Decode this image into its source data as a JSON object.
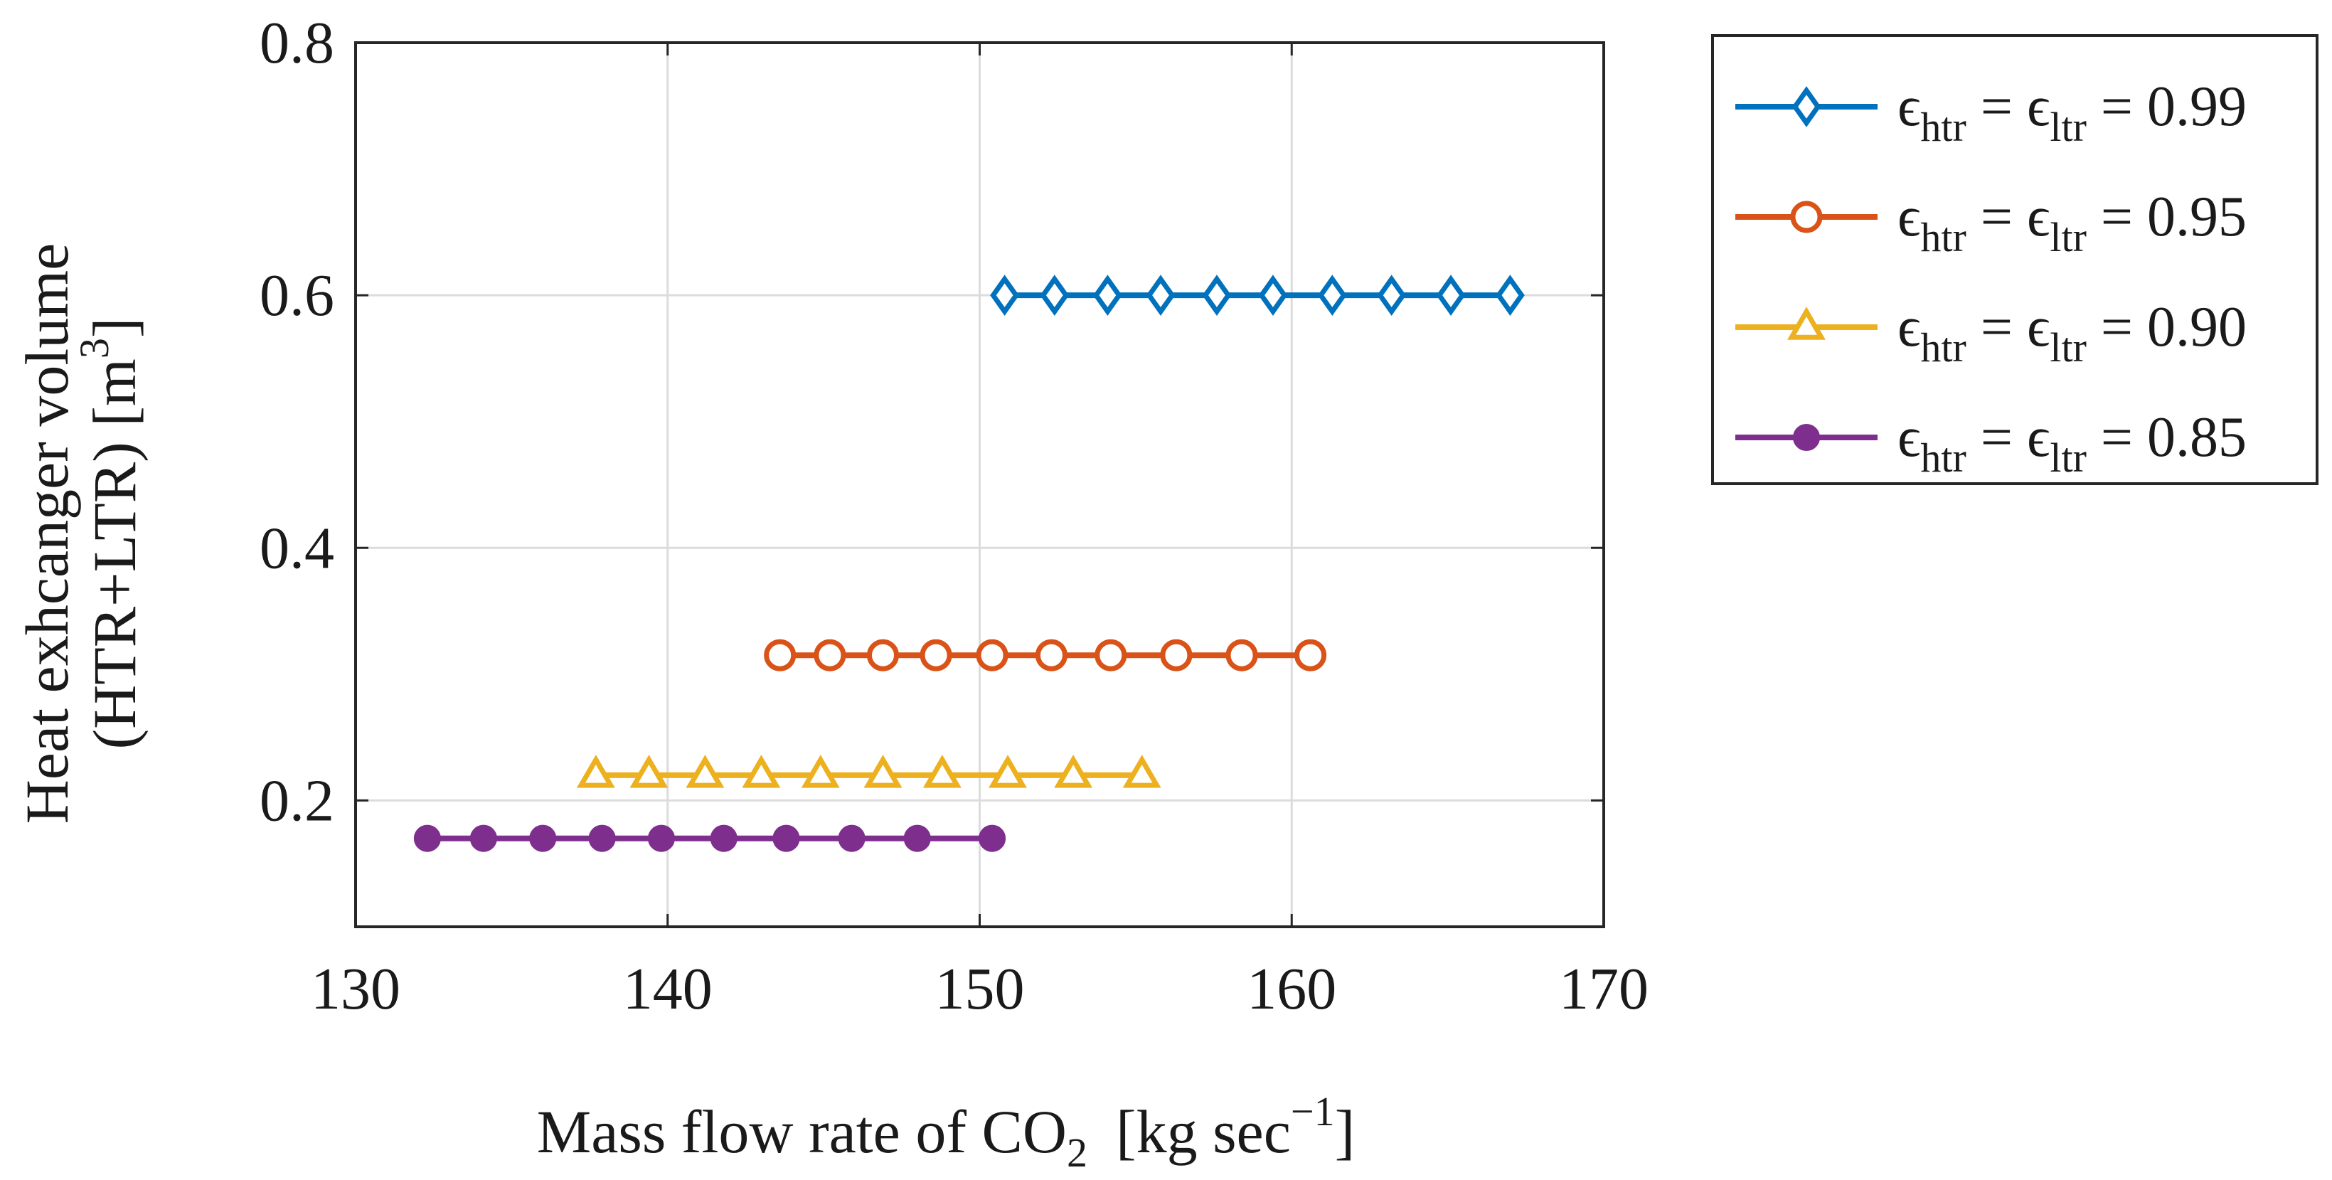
{
  "chart_data": {
    "type": "line",
    "title": "",
    "xlabel": {
      "main": "Mass flow rate of CO",
      "sub": "2",
      "units_prefix": "[kg sec",
      "units_sup": "−1",
      "units_suffix": "]"
    },
    "ylabel": {
      "line1": "Heat exhcanger volume",
      "line2_prefix": "(HTR+LTR) [m",
      "line2_sup": "3",
      "line2_suffix": "]"
    },
    "xlim": [
      130,
      170
    ],
    "ylim": [
      0.1,
      0.8
    ],
    "xticks": [
      130,
      140,
      150,
      160,
      170
    ],
    "yticks": [
      0.2,
      0.4,
      0.6,
      0.8
    ],
    "grid": true,
    "legend_position": "outside-top-right",
    "series": [
      {
        "name": "εhtr = εltr = 0.99",
        "legend": {
          "symbol": "ϵ",
          "sub1": "htr",
          "mid": " = ",
          "sub2": "ltr",
          "value": " = 0.99"
        },
        "color": "#0072BD",
        "marker": "diamond",
        "x": [
          150.8,
          152.4,
          154.1,
          155.8,
          157.6,
          159.4,
          161.3,
          163.2,
          165.1,
          167.0
        ],
        "y": [
          0.6,
          0.6,
          0.6,
          0.6,
          0.6,
          0.6,
          0.6,
          0.6,
          0.6,
          0.6
        ]
      },
      {
        "name": "εhtr = εltr = 0.95",
        "legend": {
          "symbol": "ϵ",
          "sub1": "htr",
          "mid": " = ",
          "sub2": "ltr",
          "value": " = 0.95"
        },
        "color": "#D95319",
        "marker": "circle",
        "x": [
          143.6,
          145.2,
          146.9,
          148.6,
          150.4,
          152.3,
          154.2,
          156.3,
          158.4,
          160.6
        ],
        "y": [
          0.315,
          0.315,
          0.315,
          0.315,
          0.315,
          0.315,
          0.315,
          0.315,
          0.315,
          0.315
        ]
      },
      {
        "name": "εhtr = εltr = 0.90",
        "legend": {
          "symbol": "ϵ",
          "sub1": "htr",
          "mid": " = ",
          "sub2": "ltr",
          "value": " = 0.90"
        },
        "color": "#EDB120",
        "marker": "triangle",
        "x": [
          137.7,
          139.4,
          141.2,
          143.0,
          144.9,
          146.9,
          148.8,
          150.9,
          153.0,
          155.2
        ],
        "y": [
          0.22,
          0.22,
          0.22,
          0.22,
          0.22,
          0.22,
          0.22,
          0.22,
          0.22,
          0.22
        ]
      },
      {
        "name": "εhtr = εltr = 0.85",
        "legend": {
          "symbol": "ϵ",
          "sub1": "htr",
          "mid": " = ",
          "sub2": "ltr",
          "value": " = 0.85"
        },
        "color": "#7E2F8E",
        "marker": "filled-circle",
        "x": [
          132.3,
          134.1,
          136.0,
          137.9,
          139.8,
          141.8,
          143.8,
          145.9,
          148.0,
          150.4
        ],
        "y": [
          0.17,
          0.17,
          0.17,
          0.17,
          0.17,
          0.17,
          0.17,
          0.17,
          0.17,
          0.17
        ]
      }
    ]
  }
}
